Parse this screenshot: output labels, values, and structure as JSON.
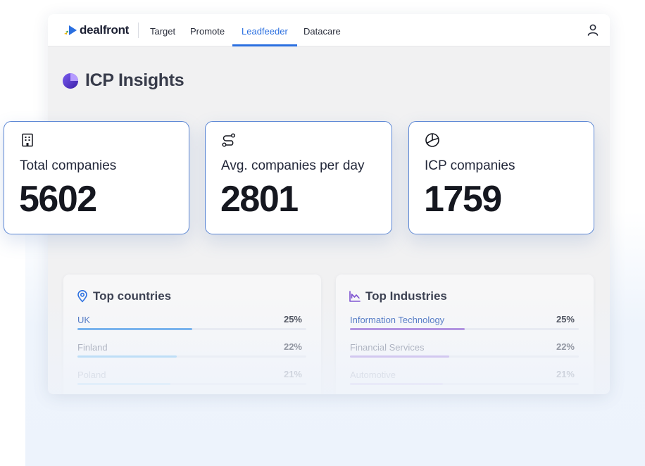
{
  "nav": {
    "logo_text": "dealfront",
    "tabs": [
      {
        "label": "Target"
      },
      {
        "label": "Promote"
      },
      {
        "label": "Leadfeeder",
        "active": true
      },
      {
        "label": "Datacare"
      }
    ]
  },
  "page": {
    "title": "ICP Insights"
  },
  "stats": [
    {
      "icon": "building-icon",
      "label": "Total companies",
      "value": "5602"
    },
    {
      "icon": "route-icon",
      "label": "Avg. companies per day",
      "value": "2801"
    },
    {
      "icon": "pie-chart-icon",
      "label": "ICP companies",
      "value": "1759"
    }
  ],
  "top_countries": {
    "title": "Top countries",
    "icon": "location-pin-icon",
    "rows": [
      {
        "label": "UK",
        "pct": "25%",
        "fill": 0.5
      },
      {
        "label": "Finland",
        "pct": "22%",
        "fill": 0.435
      },
      {
        "label": "Poland",
        "pct": "21%",
        "fill": 0.405
      }
    ]
  },
  "top_industries": {
    "title": "Top Industries",
    "icon": "line-chart-icon",
    "rows": [
      {
        "label": "Information Technology",
        "pct": "25%",
        "fill": 0.5
      },
      {
        "label": "Financial Services",
        "pct": "22%",
        "fill": 0.435
      },
      {
        "label": "Automotive",
        "pct": "21%",
        "fill": 0.405
      }
    ]
  },
  "colors": {
    "accent": "#2a6fe0",
    "countries_bar": [
      "#4a9ae8",
      "#88c6f2",
      "#b8def6"
    ],
    "industries_bar": [
      "#9a6ed6",
      "#b497e4",
      "#d8cdf0"
    ]
  }
}
